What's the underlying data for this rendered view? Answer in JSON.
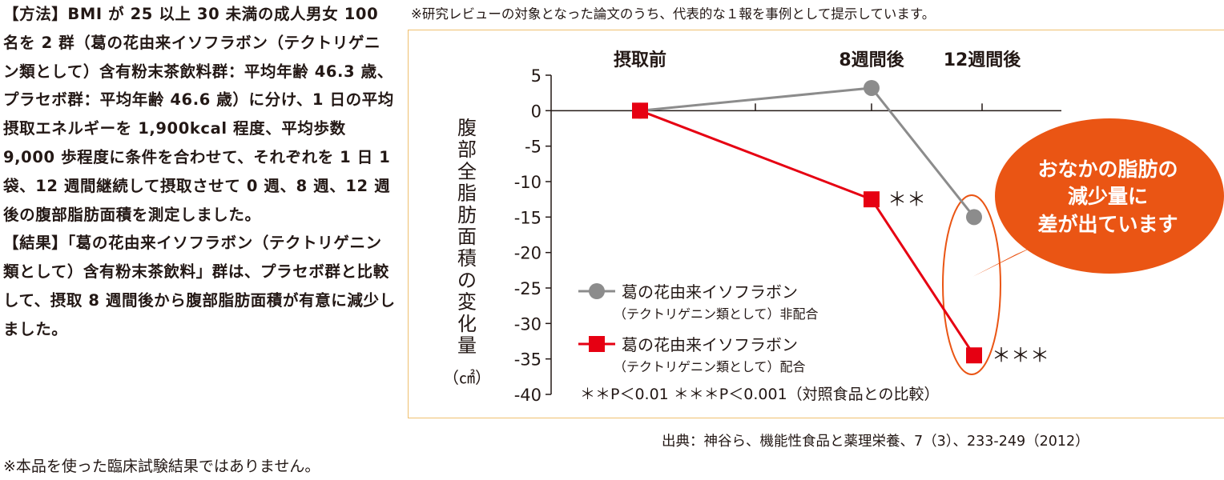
{
  "left_text": {
    "paragraphs": [
      "【方法】BMI が 25 以上 30 未満の成人男女 100 名を 2 群（葛の花由来イソフラボン（テクトリゲニン類として）含有粉末茶飲料群：平均年齢 46.3 歳、プラセボ群：平均年齢 46.6 歳）に分け、1 日の平均摂取エネルギーを 1,900kcal 程度、平均歩数 9,000 歩程度に条件を合わせて、それぞれを 1 日 1 袋、12 週間継続して摂取させて 0 週、8 週、12 週後の腹部脂肪面積を測定しました。",
      "【結果】「葛の花由来イソフラボン（テクトリゲニン類として）含有粉末茶飲料」群は、プラセボ群と比較して、摂取 8 週間後から腹部脂肪面積が有意に減少しました。"
    ]
  },
  "bottom_note": "※本品を使った臨床試験結果ではありません。",
  "top_note": "※研究レビューの対象となった論文のうち、代表的な１報を事例として提示しています。",
  "source": "出典：神谷ら、機能性食品と薬理栄養、7（3）、233-249（2012）",
  "callout": [
    "おなかの脂肪の",
    "減少量に",
    "差が出ています"
  ],
  "colors": {
    "gray_series": "#8c8c8c",
    "red_series": "#e60012",
    "callout": "#ea5514",
    "box_border": "#f0c070"
  },
  "chart_data": {
    "type": "line",
    "ylabel": "腹部全脂肪面積の変化量",
    "yunit": "（㎠）",
    "ylim": [
      -40,
      5
    ],
    "yticks": [
      "5",
      "0",
      "-5",
      "-10",
      "-15",
      "-20",
      "-25",
      "-30",
      "-35",
      "-40"
    ],
    "categories": [
      "摂取前",
      "8週間後",
      "12週間後"
    ],
    "series": [
      {
        "name": "葛の花由来イソフラボン",
        "name_sub": "（テクトリゲニン類として）非配合",
        "marker": "circle",
        "values": [
          0,
          3.2,
          -15
        ]
      },
      {
        "name": "葛の花由来イソフラボン",
        "name_sub": "（テクトリゲニン類として）配合",
        "marker": "square",
        "values": [
          0,
          -12.5,
          -34.5
        ]
      }
    ],
    "annotations": {
      "week8": "＊＊",
      "week12": "＊＊＊"
    },
    "significance_note": "＊＊P＜0.01 ＊＊＊P＜0.001（対照食品との比較）"
  }
}
